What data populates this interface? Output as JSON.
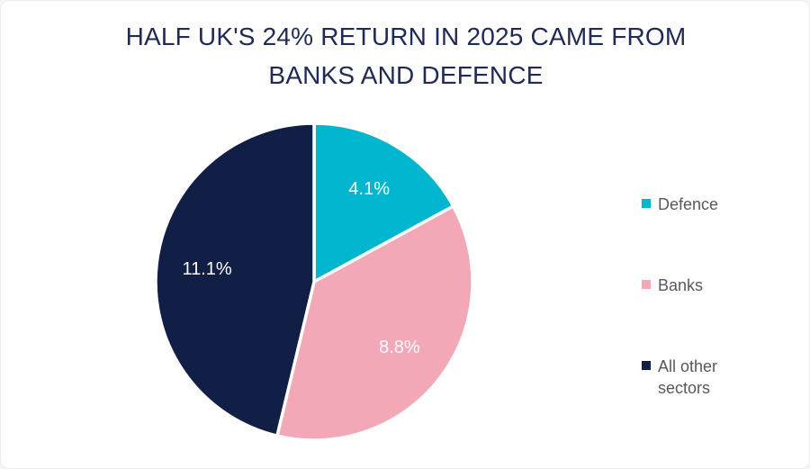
{
  "title_lines": [
    "HALF UK'S 24% RETURN IN 2025 CAME FROM",
    "BANKS AND DEFENCE"
  ],
  "chart_data": {
    "type": "pie",
    "title": "HALF UK'S 24% RETURN IN 2025 CAME FROM BANKS AND DEFENCE",
    "total": 24,
    "start_angle_deg": 0,
    "direction": "clockwise",
    "legend_position": "right",
    "data_label_color": "#FFFFFF",
    "title_color": "#202A56",
    "legend_text_color": "#595959",
    "slice_gap_color": "#FFFFFF",
    "slices": [
      {
        "label": "Defence",
        "value": 4.1,
        "display": "4.1%",
        "color": "#00B5CE"
      },
      {
        "label": "Banks",
        "value": 8.8,
        "display": "8.8%",
        "color": "#F3A8B8"
      },
      {
        "label": "All other sectors",
        "value": 11.1,
        "display": "11.1%",
        "color": "#111E46"
      }
    ]
  }
}
